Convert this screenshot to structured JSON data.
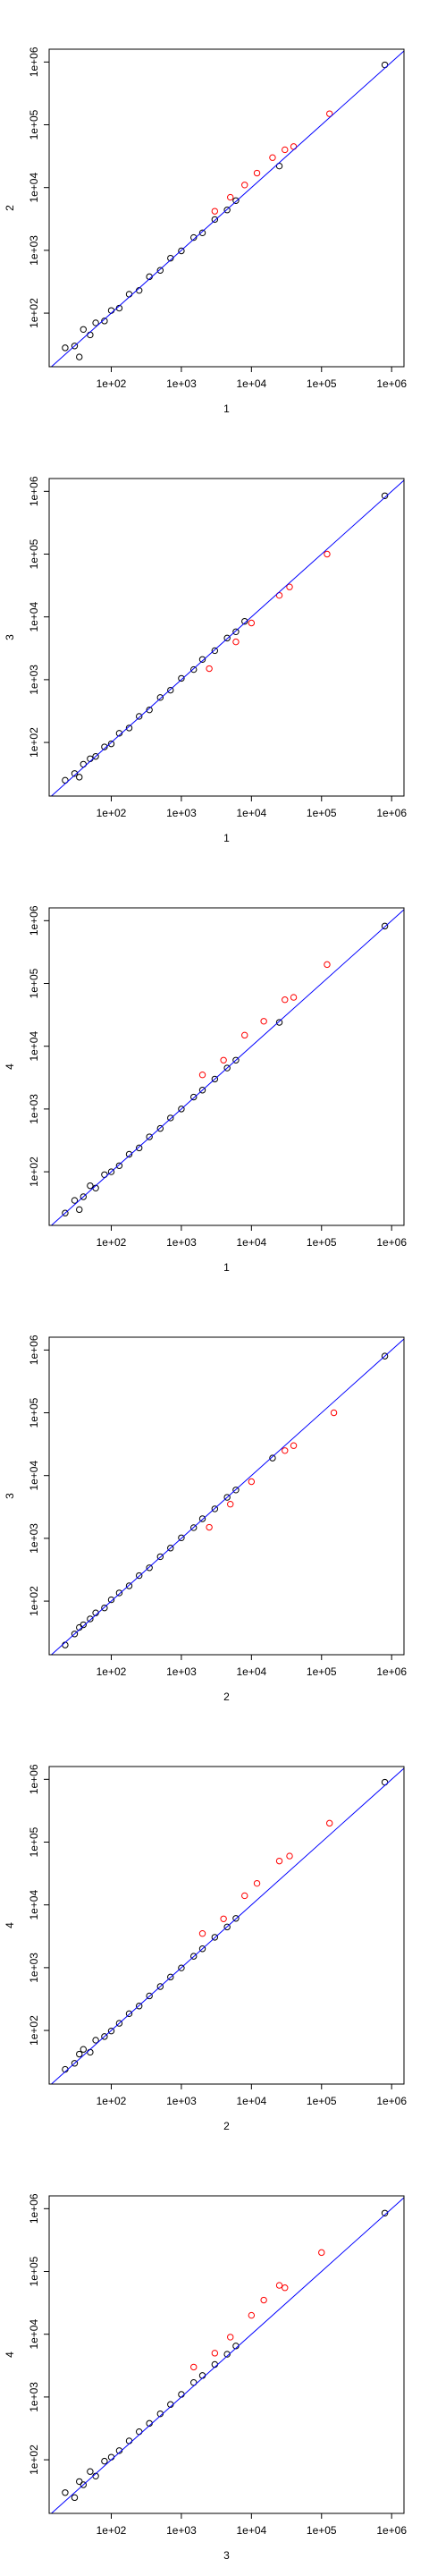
{
  "chart_data": [
    {
      "type": "scatter",
      "xlabel": "1",
      "ylabel": "2",
      "log_x": true,
      "log_y": true,
      "abline_color": "#0000ff",
      "xlim": [
        13,
        1500000
      ],
      "ylim": [
        14,
        1600000
      ],
      "xticks": [
        {
          "value": 100,
          "label": "1e+02"
        },
        {
          "value": 1000,
          "label": "1e+03"
        },
        {
          "value": 10000,
          "label": "1e+04"
        },
        {
          "value": 100000,
          "label": "1e+05"
        },
        {
          "value": 1000000,
          "label": "1e+06"
        }
      ],
      "yticks": [
        {
          "value": 100,
          "label": "1e+02"
        },
        {
          "value": 1000,
          "label": "1e+03"
        },
        {
          "value": 10000,
          "label": "1e+04"
        },
        {
          "value": 100000,
          "label": "1e+05"
        },
        {
          "value": 1000000,
          "label": "1e+06"
        }
      ],
      "series": [
        {
          "color": "#000000",
          "x": [
            22,
            30,
            35,
            40,
            50,
            60,
            80,
            100,
            130,
            180,
            250,
            350,
            500,
            700,
            1000,
            1500,
            2000,
            3000,
            4500,
            6000,
            25000,
            800000
          ],
          "values": [
            28,
            30,
            20,
            55,
            45,
            70,
            75,
            110,
            120,
            200,
            230,
            380,
            480,
            750,
            980,
            1600,
            1900,
            3100,
            4400,
            6200,
            22000,
            900000
          ]
        },
        {
          "color": "#ff0000",
          "x": [
            3000,
            5000,
            8000,
            12000,
            20000,
            30000,
            40000,
            130000
          ],
          "values": [
            4200,
            7000,
            11000,
            17000,
            30000,
            40000,
            45000,
            150000
          ]
        }
      ]
    },
    {
      "type": "scatter",
      "xlabel": "1",
      "ylabel": "3",
      "log_x": true,
      "log_y": true,
      "abline_color": "#0000ff",
      "xlim": [
        13,
        1500000
      ],
      "ylim": [
        14,
        1600000
      ],
      "xticks": [
        {
          "value": 100,
          "label": "1e+02"
        },
        {
          "value": 1000,
          "label": "1e+03"
        },
        {
          "value": 10000,
          "label": "1e+04"
        },
        {
          "value": 100000,
          "label": "1e+05"
        },
        {
          "value": 1000000,
          "label": "1e+06"
        }
      ],
      "yticks": [
        {
          "value": 100,
          "label": "1e+02"
        },
        {
          "value": 1000,
          "label": "1e+03"
        },
        {
          "value": 10000,
          "label": "1e+04"
        },
        {
          "value": 100000,
          "label": "1e+05"
        },
        {
          "value": 1000000,
          "label": "1e+06"
        }
      ],
      "series": [
        {
          "color": "#000000",
          "x": [
            22,
            30,
            35,
            40,
            50,
            60,
            80,
            100,
            130,
            180,
            250,
            350,
            500,
            700,
            1000,
            1500,
            2000,
            3000,
            4500,
            6000,
            8000,
            800000
          ],
          "values": [
            25,
            32,
            28,
            45,
            55,
            60,
            85,
            95,
            140,
            170,
            260,
            330,
            520,
            680,
            1050,
            1450,
            2100,
            2900,
            4600,
            5800,
            8500,
            850000
          ]
        },
        {
          "color": "#ff0000",
          "x": [
            2500,
            6000,
            10000,
            25000,
            35000,
            120000
          ],
          "values": [
            1500,
            4000,
            8000,
            22000,
            30000,
            100000
          ]
        }
      ]
    },
    {
      "type": "scatter",
      "xlabel": "1",
      "ylabel": "4",
      "log_x": true,
      "log_y": true,
      "abline_color": "#0000ff",
      "xlim": [
        13,
        1500000
      ],
      "ylim": [
        14,
        1600000
      ],
      "xticks": [
        {
          "value": 100,
          "label": "1e+02"
        },
        {
          "value": 1000,
          "label": "1e+03"
        },
        {
          "value": 10000,
          "label": "1e+04"
        },
        {
          "value": 100000,
          "label": "1e+05"
        },
        {
          "value": 1000000,
          "label": "1e+06"
        }
      ],
      "yticks": [
        {
          "value": 100,
          "label": "1e+02"
        },
        {
          "value": 1000,
          "label": "1e+03"
        },
        {
          "value": 10000,
          "label": "1e+04"
        },
        {
          "value": 100000,
          "label": "1e+05"
        },
        {
          "value": 1000000,
          "label": "1e+06"
        }
      ],
      "series": [
        {
          "color": "#000000",
          "x": [
            22,
            30,
            35,
            40,
            50,
            60,
            80,
            100,
            130,
            180,
            250,
            350,
            500,
            700,
            1000,
            1500,
            2000,
            3000,
            4500,
            6000,
            25000,
            800000
          ],
          "values": [
            22,
            35,
            25,
            40,
            60,
            55,
            90,
            100,
            125,
            190,
            240,
            360,
            490,
            720,
            1000,
            1550,
            2000,
            3000,
            4500,
            6000,
            24000,
            820000
          ]
        },
        {
          "color": "#ff0000",
          "x": [
            2000,
            4000,
            8000,
            15000,
            30000,
            40000,
            120000
          ],
          "values": [
            3500,
            6000,
            15000,
            25000,
            55000,
            60000,
            200000
          ]
        }
      ]
    },
    {
      "type": "scatter",
      "xlabel": "2",
      "ylabel": "3",
      "log_x": true,
      "log_y": true,
      "abline_color": "#0000ff",
      "xlim": [
        13,
        1500000
      ],
      "ylim": [
        14,
        1600000
      ],
      "xticks": [
        {
          "value": 100,
          "label": "1e+02"
        },
        {
          "value": 1000,
          "label": "1e+03"
        },
        {
          "value": 10000,
          "label": "1e+04"
        },
        {
          "value": 100000,
          "label": "1e+05"
        },
        {
          "value": 1000000,
          "label": "1e+06"
        }
      ],
      "yticks": [
        {
          "value": 100,
          "label": "1e+02"
        },
        {
          "value": 1000,
          "label": "1e+03"
        },
        {
          "value": 10000,
          "label": "1e+04"
        },
        {
          "value": 100000,
          "label": "1e+05"
        },
        {
          "value": 1000000,
          "label": "1e+06"
        }
      ],
      "series": [
        {
          "color": "#000000",
          "x": [
            22,
            30,
            35,
            40,
            50,
            60,
            80,
            100,
            130,
            180,
            250,
            350,
            500,
            700,
            1000,
            1500,
            2000,
            3000,
            4500,
            6000,
            20000,
            800000
          ],
          "values": [
            20,
            30,
            38,
            42,
            52,
            65,
            78,
            105,
            135,
            175,
            255,
            340,
            510,
            700,
            1020,
            1480,
            2050,
            2950,
            4500,
            5900,
            19000,
            800000
          ]
        },
        {
          "color": "#ff0000",
          "x": [
            2500,
            5000,
            10000,
            30000,
            40000,
            150000
          ],
          "values": [
            1500,
            3500,
            8000,
            25000,
            30000,
            100000
          ]
        }
      ]
    },
    {
      "type": "scatter",
      "xlabel": "2",
      "ylabel": "4",
      "log_x": true,
      "log_y": true,
      "abline_color": "#0000ff",
      "xlim": [
        13,
        1500000
      ],
      "ylim": [
        14,
        1600000
      ],
      "xticks": [
        {
          "value": 100,
          "label": "1e+02"
        },
        {
          "value": 1000,
          "label": "1e+03"
        },
        {
          "value": 10000,
          "label": "1e+04"
        },
        {
          "value": 100000,
          "label": "1e+05"
        },
        {
          "value": 1000000,
          "label": "1e+06"
        }
      ],
      "yticks": [
        {
          "value": 100,
          "label": "1e+02"
        },
        {
          "value": 1000,
          "label": "1e+03"
        },
        {
          "value": 10000,
          "label": "1e+04"
        },
        {
          "value": 100000,
          "label": "1e+05"
        },
        {
          "value": 1000000,
          "label": "1e+06"
        }
      ],
      "series": [
        {
          "color": "#000000",
          "x": [
            22,
            30,
            35,
            40,
            50,
            60,
            80,
            100,
            130,
            180,
            250,
            350,
            500,
            700,
            1000,
            1500,
            2000,
            3000,
            4500,
            6000,
            800000
          ],
          "values": [
            24,
            30,
            42,
            50,
            45,
            70,
            80,
            98,
            130,
            185,
            245,
            355,
            500,
            710,
            990,
            1520,
            2000,
            3050,
            4450,
            6100,
            900000
          ]
        },
        {
          "color": "#ff0000",
          "x": [
            2000,
            4000,
            8000,
            12000,
            25000,
            35000,
            130000
          ],
          "values": [
            3500,
            6000,
            14000,
            22000,
            50000,
            60000,
            200000
          ]
        }
      ]
    },
    {
      "type": "scatter",
      "xlabel": "3",
      "ylabel": "4",
      "log_x": true,
      "log_y": true,
      "abline_color": "#0000ff",
      "xlim": [
        13,
        1500000
      ],
      "ylim": [
        14,
        1600000
      ],
      "xticks": [
        {
          "value": 100,
          "label": "1e+02"
        },
        {
          "value": 1000,
          "label": "1e+03"
        },
        {
          "value": 10000,
          "label": "1e+04"
        },
        {
          "value": 100000,
          "label": "1e+05"
        },
        {
          "value": 1000000,
          "label": "1e+06"
        }
      ],
      "yticks": [
        {
          "value": 100,
          "label": "1e+02"
        },
        {
          "value": 1000,
          "label": "1e+03"
        },
        {
          "value": 10000,
          "label": "1e+04"
        },
        {
          "value": 100000,
          "label": "1e+05"
        },
        {
          "value": 1000000,
          "label": "1e+06"
        }
      ],
      "series": [
        {
          "color": "#000000",
          "x": [
            22,
            30,
            35,
            40,
            50,
            60,
            80,
            100,
            130,
            180,
            250,
            350,
            500,
            700,
            1000,
            1500,
            2000,
            3000,
            4500,
            6000,
            800000
          ],
          "values": [
            30,
            25,
            45,
            40,
            65,
            55,
            95,
            110,
            140,
            200,
            280,
            380,
            540,
            760,
            1100,
            1700,
            2200,
            3300,
            4800,
            6500,
            850000
          ]
        },
        {
          "color": "#ff0000",
          "x": [
            1500,
            3000,
            5000,
            10000,
            15000,
            25000,
            30000,
            100000
          ],
          "values": [
            3000,
            5000,
            9000,
            20000,
            35000,
            60000,
            55000,
            200000
          ]
        }
      ]
    }
  ]
}
